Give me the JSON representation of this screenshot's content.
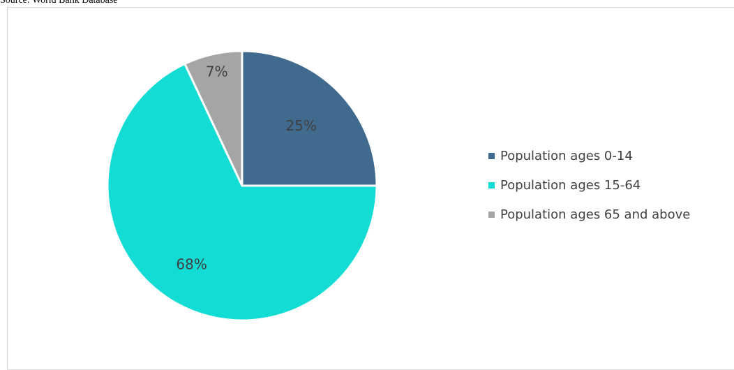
{
  "source_note": "Source: World Bank Database",
  "chart_data": {
    "type": "pie",
    "categories": [
      "Population ages 0-14",
      "Population ages 15-64",
      "Population ages 65 and above"
    ],
    "values": [
      25,
      68,
      7
    ],
    "data_labels": [
      "25%",
      "68%",
      "7%"
    ],
    "colors": [
      "#406a8e",
      "#12dcd4",
      "#a5a5a5"
    ],
    "legend_position": "right",
    "title": ""
  }
}
